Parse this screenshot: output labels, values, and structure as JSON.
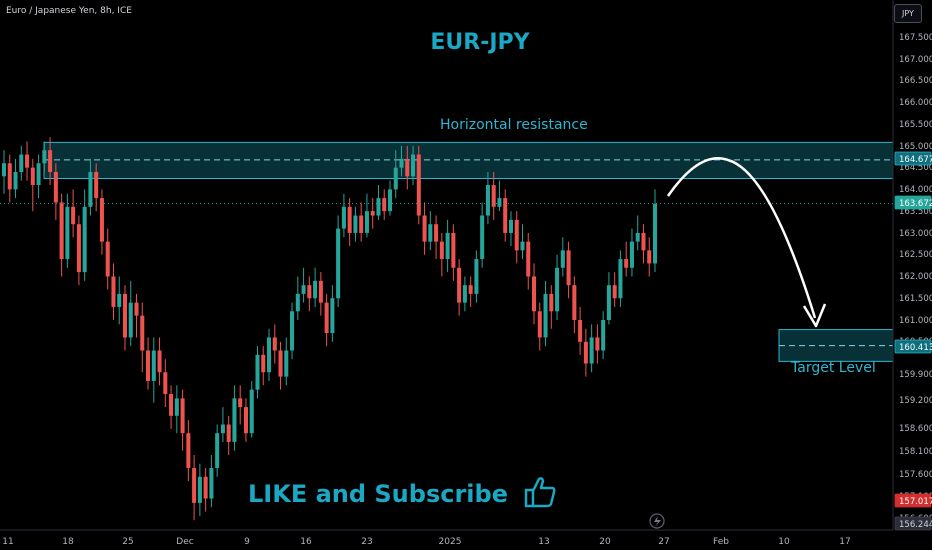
{
  "header": {
    "symbol_line": "Euro / Japanese Yen, 8h, ICE",
    "currency_button": "JPY"
  },
  "annotations": {
    "title": "EUR-JPY",
    "resistance_label": "Horizontal resistance",
    "target_label": "Target Level",
    "cta": "LIKE and Subscribe"
  },
  "colors": {
    "up": "#26a69a",
    "down": "#ef5350",
    "accent": "#1aa8c5",
    "zone": "#0c5a63",
    "bg": "#000000"
  },
  "icons": {
    "thumbs_up": "thumbs-up-icon",
    "flash": "lightning-icon"
  },
  "chart_data": {
    "type": "candlestick",
    "title": "EUR-JPY",
    "y_axis_ticks": [
      "167.500",
      "167.000",
      "166.500",
      "166.000",
      "165.500",
      "165.000",
      "164.500",
      "164.000",
      "163.500",
      "163.000",
      "162.500",
      "162.000",
      "161.500",
      "161.000",
      "160.500",
      "159.900",
      "159.200",
      "158.600",
      "158.100",
      "157.600",
      "157.100",
      "156.600"
    ],
    "x_axis_ticks": [
      "11",
      "18",
      "25",
      "Dec",
      "9",
      "16",
      "23",
      "2025",
      "13",
      "20",
      "27",
      "Feb",
      "10",
      "17"
    ],
    "price_labels": [
      {
        "value": "164.677",
        "style": "zone"
      },
      {
        "value": "163.672",
        "style": "current"
      },
      {
        "value": "160.413",
        "style": "zone"
      },
      {
        "value": "157.017",
        "style": "low"
      },
      {
        "value": "156.244",
        "style": "dark"
      }
    ],
    "resistance_zone": {
      "from": 164.25,
      "to": 165.08,
      "line": 164.677
    },
    "target_zone": {
      "from": 160.05,
      "to": 160.78,
      "line": 160.413
    },
    "current_price": 163.672,
    "candles": [
      [
        164.3,
        164.6,
        164.9,
        163.9
      ],
      [
        164.6,
        164.0,
        164.8,
        163.7
      ],
      [
        164.0,
        164.4,
        164.7,
        163.8
      ],
      [
        164.4,
        164.8,
        165.0,
        164.2
      ],
      [
        164.8,
        164.5,
        165.1,
        164.2
      ],
      [
        164.5,
        164.1,
        164.7,
        163.5
      ],
      [
        164.1,
        164.6,
        164.8,
        163.8
      ],
      [
        164.6,
        164.9,
        165.1,
        164.4
      ],
      [
        164.9,
        164.4,
        165.2,
        164.1
      ],
      [
        164.4,
        163.7,
        164.6,
        163.3
      ],
      [
        163.7,
        162.4,
        163.9,
        162.0
      ],
      [
        162.4,
        163.6,
        163.9,
        162.2
      ],
      [
        163.6,
        163.2,
        164.0,
        162.9
      ],
      [
        163.2,
        162.1,
        163.4,
        161.8
      ],
      [
        162.1,
        163.6,
        164.0,
        161.9
      ],
      [
        163.6,
        164.4,
        164.7,
        163.4
      ],
      [
        164.4,
        163.8,
        164.6,
        163.5
      ],
      [
        163.8,
        162.8,
        164.0,
        162.5
      ],
      [
        162.8,
        162.0,
        163.1,
        161.7
      ],
      [
        162.0,
        161.3,
        162.3,
        161.0
      ],
      [
        161.3,
        161.6,
        162.0,
        160.9
      ],
      [
        161.6,
        160.6,
        161.8,
        160.3
      ],
      [
        160.6,
        161.4,
        161.9,
        160.4
      ],
      [
        161.4,
        161.1,
        161.6,
        160.6
      ],
      [
        161.1,
        160.3,
        161.4,
        159.8
      ],
      [
        160.3,
        159.6,
        160.6,
        159.4
      ],
      [
        159.6,
        160.3,
        160.6,
        159.1
      ],
      [
        160.3,
        159.8,
        160.6,
        159.5
      ],
      [
        159.8,
        159.3,
        160.1,
        159.0
      ],
      [
        159.3,
        158.8,
        159.5,
        158.5
      ],
      [
        158.8,
        159.2,
        159.5,
        158.4
      ],
      [
        159.2,
        158.4,
        159.4,
        158.0
      ],
      [
        158.4,
        157.6,
        158.7,
        157.3
      ],
      [
        157.6,
        156.8,
        157.9,
        156.4
      ],
      [
        156.8,
        157.4,
        157.7,
        156.5
      ],
      [
        157.4,
        156.9,
        157.6,
        156.6
      ],
      [
        156.9,
        157.6,
        157.9,
        156.7
      ],
      [
        157.6,
        158.4,
        158.6,
        157.4
      ],
      [
        158.4,
        158.6,
        159.0,
        158.2
      ],
      [
        158.6,
        158.2,
        158.8,
        157.9
      ],
      [
        158.2,
        159.2,
        159.5,
        158.0
      ],
      [
        159.2,
        159.0,
        159.5,
        158.6
      ],
      [
        159.0,
        158.4,
        159.2,
        158.2
      ],
      [
        158.4,
        159.4,
        159.6,
        158.3
      ],
      [
        159.4,
        160.2,
        160.4,
        159.2
      ],
      [
        160.2,
        159.8,
        160.4,
        159.5
      ],
      [
        159.8,
        160.6,
        160.8,
        159.6
      ],
      [
        160.6,
        160.3,
        160.9,
        160.0
      ],
      [
        160.3,
        159.7,
        160.5,
        159.4
      ],
      [
        159.7,
        160.3,
        160.6,
        159.5
      ],
      [
        160.3,
        161.2,
        161.4,
        160.1
      ],
      [
        161.2,
        161.6,
        162.0,
        161.0
      ],
      [
        161.6,
        161.8,
        162.2,
        161.4
      ],
      [
        161.8,
        161.5,
        162.0,
        161.2
      ],
      [
        161.5,
        161.9,
        162.2,
        161.3
      ],
      [
        161.9,
        161.4,
        162.1,
        161.1
      ],
      [
        161.4,
        160.7,
        161.6,
        160.4
      ],
      [
        160.7,
        161.5,
        161.8,
        160.5
      ],
      [
        161.5,
        163.1,
        163.4,
        161.3
      ],
      [
        163.1,
        163.6,
        163.9,
        162.9
      ],
      [
        163.6,
        163.0,
        163.8,
        162.7
      ],
      [
        163.0,
        163.4,
        163.6,
        162.8
      ],
      [
        163.4,
        163.0,
        163.7,
        162.8
      ],
      [
        163.0,
        163.5,
        163.9,
        162.9
      ],
      [
        163.5,
        163.4,
        163.8,
        163.1
      ],
      [
        163.4,
        163.8,
        164.1,
        163.3
      ],
      [
        163.8,
        163.5,
        164.0,
        163.3
      ],
      [
        163.5,
        164.0,
        164.2,
        163.4
      ],
      [
        164.0,
        164.5,
        164.9,
        163.8
      ],
      [
        164.5,
        164.7,
        165.0,
        164.3
      ],
      [
        164.7,
        164.3,
        165.0,
        164.0
      ],
      [
        164.3,
        164.8,
        165.0,
        164.1
      ],
      [
        164.8,
        163.4,
        165.0,
        163.2
      ],
      [
        163.4,
        162.8,
        163.7,
        162.5
      ],
      [
        162.8,
        163.2,
        163.5,
        162.6
      ],
      [
        163.2,
        162.8,
        163.4,
        162.4
      ],
      [
        162.8,
        162.4,
        163.0,
        162.0
      ],
      [
        162.4,
        163.0,
        163.3,
        162.1
      ],
      [
        163.0,
        162.2,
        163.2,
        161.9
      ],
      [
        162.2,
        161.4,
        162.4,
        161.1
      ],
      [
        161.4,
        161.8,
        162.0,
        161.2
      ],
      [
        161.8,
        161.6,
        162.0,
        161.3
      ],
      [
        161.6,
        162.4,
        162.6,
        161.4
      ],
      [
        162.4,
        163.4,
        163.7,
        162.2
      ],
      [
        163.4,
        164.1,
        164.4,
        163.2
      ],
      [
        164.1,
        163.6,
        164.4,
        163.3
      ],
      [
        163.6,
        163.8,
        164.2,
        163.5
      ],
      [
        163.8,
        163.0,
        164.0,
        162.8
      ],
      [
        163.0,
        163.3,
        163.5,
        162.7
      ],
      [
        163.3,
        162.6,
        163.5,
        162.3
      ],
      [
        162.6,
        162.8,
        163.2,
        162.4
      ],
      [
        162.8,
        162.0,
        163.0,
        161.7
      ],
      [
        162.0,
        161.2,
        162.3,
        160.9
      ],
      [
        161.2,
        160.6,
        161.4,
        160.3
      ],
      [
        160.6,
        161.6,
        161.9,
        160.4
      ],
      [
        161.6,
        161.2,
        161.8,
        160.8
      ],
      [
        161.2,
        162.2,
        162.5,
        161.0
      ],
      [
        162.2,
        162.6,
        162.9,
        162.0
      ],
      [
        162.6,
        161.8,
        162.8,
        161.5
      ],
      [
        161.8,
        161.0,
        162.0,
        160.7
      ],
      [
        161.0,
        160.5,
        161.3,
        160.2
      ],
      [
        160.5,
        160.0,
        160.8,
        159.7
      ],
      [
        160.0,
        160.6,
        160.9,
        159.8
      ],
      [
        160.6,
        160.3,
        160.9,
        160.0
      ],
      [
        160.3,
        161.0,
        161.2,
        160.1
      ],
      [
        161.0,
        161.8,
        162.1,
        160.9
      ],
      [
        161.8,
        161.5,
        162.1,
        161.3
      ],
      [
        161.5,
        162.4,
        162.6,
        161.3
      ],
      [
        162.4,
        162.2,
        162.8,
        162.0
      ],
      [
        162.2,
        162.8,
        163.1,
        162.0
      ],
      [
        162.8,
        163.0,
        163.4,
        162.6
      ],
      [
        163.0,
        162.6,
        163.2,
        162.3
      ],
      [
        162.6,
        162.3,
        162.9,
        162.0
      ],
      [
        162.3,
        163.67,
        164.0,
        162.1
      ]
    ]
  }
}
